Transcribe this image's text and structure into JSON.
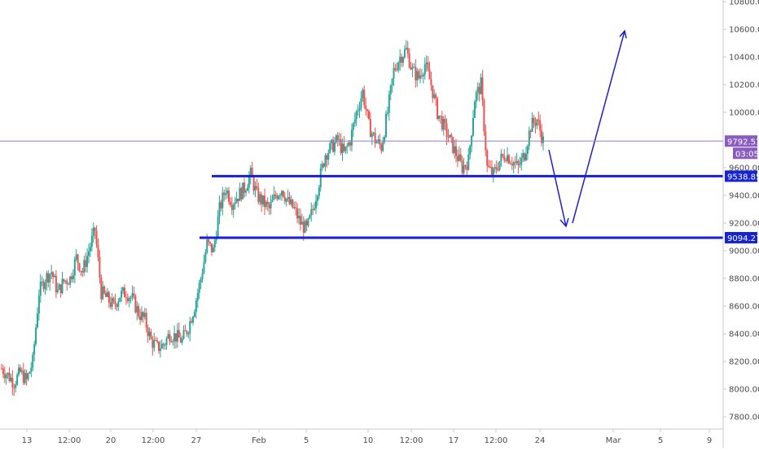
{
  "chart_data": {
    "type": "candlestick",
    "x_ticks": [
      "13",
      "12:00",
      "20",
      "12:00",
      "27",
      "Feb",
      "5",
      "10",
      "12:00",
      "17",
      "12:00",
      "24",
      "Mar",
      "5",
      "9"
    ],
    "y_ticks": [
      "10800.00",
      "10600.00",
      "10400.00",
      "10200.00",
      "10000.00",
      "9600.00",
      "9400.00",
      "9200.00",
      "9000.00",
      "8800.00",
      "8600.00",
      "8400.00",
      "8200.00",
      "8000.00",
      "7800.00"
    ],
    "ylim": [
      7700,
      10800
    ],
    "last_price": {
      "value": 9792.51,
      "label": "9792.51",
      "countdown": "03:05"
    },
    "levels": [
      {
        "value": 9538.85,
        "label": "9538.85"
      },
      {
        "value": 9094.27,
        "label": "9094.27"
      }
    ],
    "candles_close_path": [
      8150,
      8100,
      8050,
      8120,
      8060,
      8200,
      8700,
      8800,
      8850,
      8700,
      8780,
      8800,
      8950,
      8850,
      9000,
      9150,
      8700,
      8650,
      8600,
      8680,
      8700,
      8650,
      8550,
      8500,
      8350,
      8300,
      8320,
      8400,
      8380,
      8350,
      8450,
      8600,
      8800,
      9050,
      9000,
      9300,
      9450,
      9350,
      9400,
      9450,
      9550,
      9400,
      9350,
      9300,
      9400,
      9450,
      9350,
      9300,
      9200,
      9150,
      9300,
      9500,
      9700,
      9750,
      9800,
      9700,
      9800,
      10000,
      10150,
      9900,
      9800,
      9750,
      10000,
      10300,
      10400,
      10450,
      10300,
      10250,
      10350,
      10200,
      10000,
      9900,
      9800,
      9700,
      9600,
      9650,
      10100,
      10200,
      9600,
      9550,
      9650,
      9700,
      9650,
      9600,
      9700,
      9900,
      9950,
      9792
    ],
    "projection_colors": {
      "arrow": "#1a1fd6",
      "levels": "#1a1fd6",
      "up": "#26a69a",
      "down": "#ef5350"
    }
  }
}
